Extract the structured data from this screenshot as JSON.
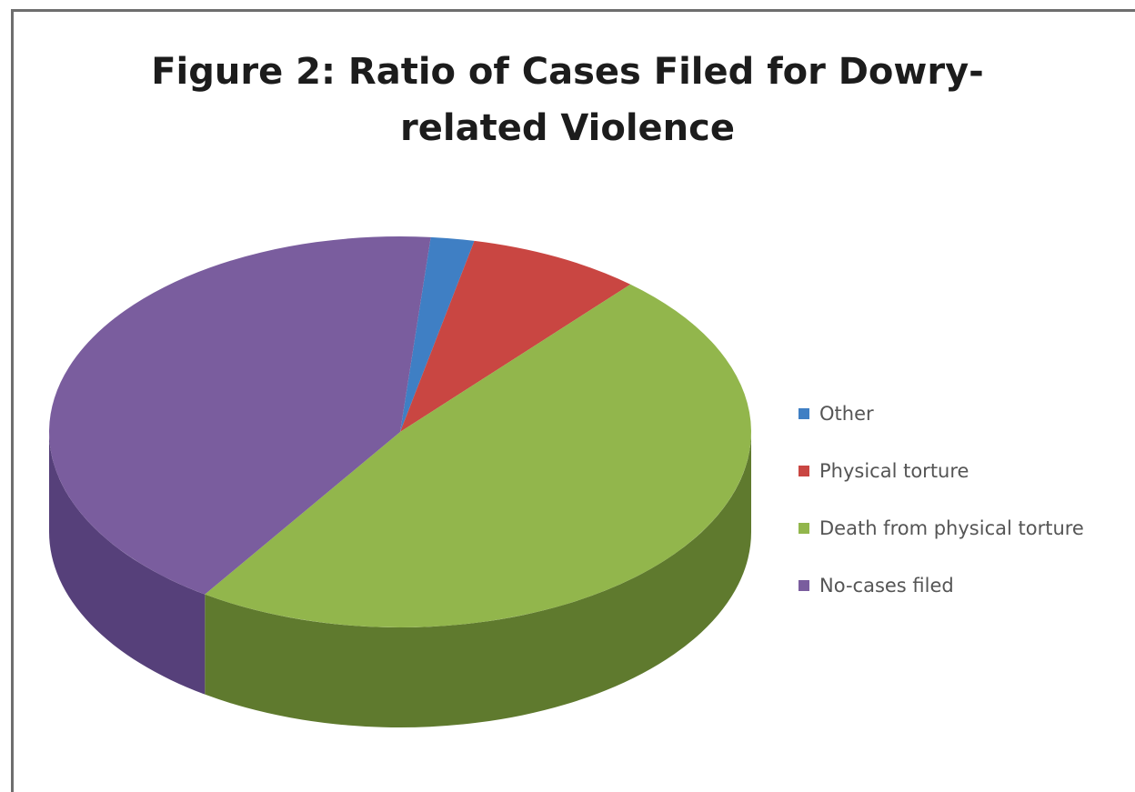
{
  "chart_data": {
    "type": "pie",
    "title_lines": [
      "Figure 2:  Ratio of Cases Filed for Dowry-",
      "related Violence"
    ],
    "labels": [
      "Other",
      "Physical torture",
      "Death from physical torture",
      "No-cases filed"
    ],
    "values": [
      2,
      8,
      48,
      42
    ],
    "legend_position": "right",
    "colors": {
      "Other": "#3f7fc4",
      "Physical torture": "#c94642",
      "Death from physical torture": "#92b64c",
      "No-cases filed": "#7a5d9e"
    },
    "side_colors": {
      "Other": "#2c5a8c",
      "Physical torture": "#8a2f2c",
      "Death from physical torture": "#5f7a2e",
      "No-cases filed": "#56407a"
    },
    "three_d": true
  }
}
